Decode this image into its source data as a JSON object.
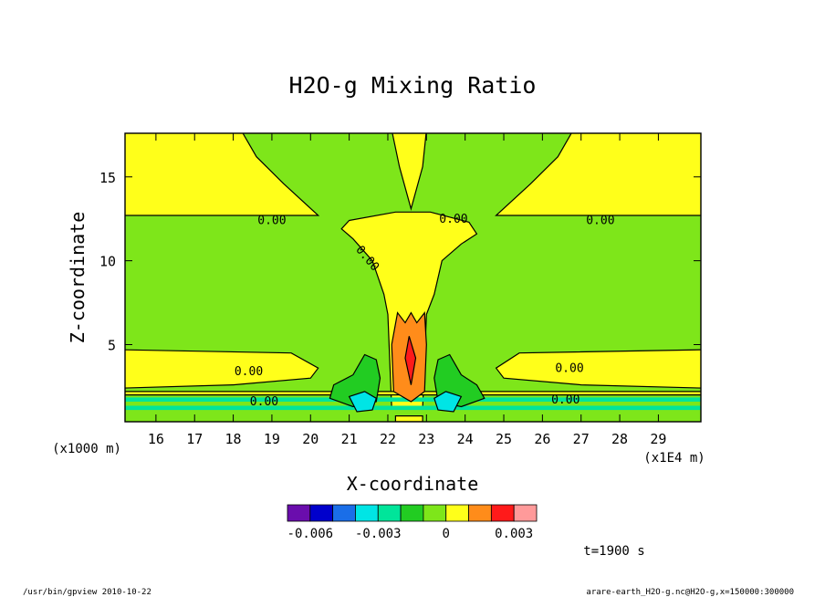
{
  "chart_data": {
    "type": "heatmap",
    "title": "H2O-g Mixing Ratio",
    "xlabel": "X-coordinate",
    "ylabel": "Z-coordinate",
    "x_unit": "(x1E4 m)",
    "y_unit": "(x1000 m)",
    "xlim": [
      15.2,
      30.1
    ],
    "ylim": [
      0.4,
      17.6
    ],
    "x_ticks": [
      "16",
      "17",
      "18",
      "19",
      "20",
      "21",
      "22",
      "23",
      "24",
      "25",
      "26",
      "27",
      "28",
      "29"
    ],
    "y_ticks": [
      "5",
      "10",
      "15"
    ],
    "contour_label": "0.00",
    "colorbar": {
      "colors": [
        "#6a0dad",
        "#0000cc",
        "#1a6ee8",
        "#00e5e5",
        "#00e59a",
        "#22cc22",
        "#7ee61a",
        "#ffff1a",
        "#ff8c1a",
        "#ff1a1a",
        "#ff9a9a"
      ],
      "tick_labels": [
        "-0.006",
        "-0.003",
        "0",
        "0.003"
      ]
    },
    "time_label": "t=1900 s"
  },
  "footer": {
    "left": "/usr/bin/gpview  2010-10-22",
    "right": "arare-earth_H2O-g.nc@H2O-g,x=150000:300000"
  }
}
